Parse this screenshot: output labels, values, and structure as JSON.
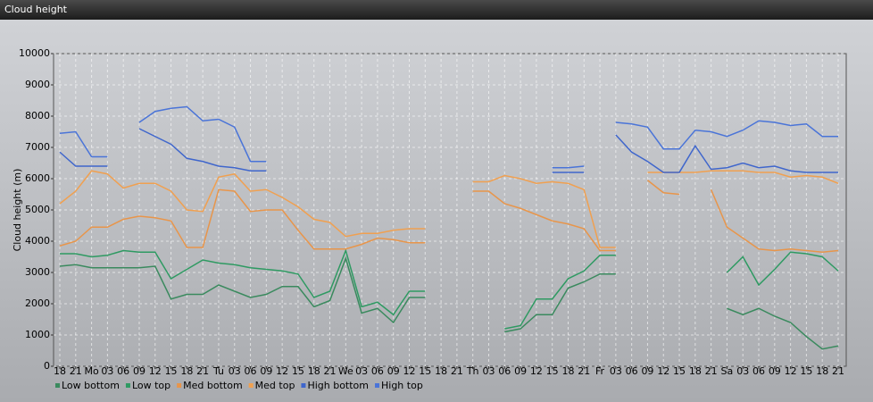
{
  "window_title": "Cloud height",
  "chart_data": {
    "type": "line",
    "y_label": "Cloud height (m)",
    "categories": [
      "18",
      "21",
      "Mo",
      "03",
      "06",
      "09",
      "12",
      "15",
      "18",
      "21",
      "Tu",
      "03",
      "06",
      "09",
      "12",
      "15",
      "18",
      "21",
      "We",
      "03",
      "06",
      "09",
      "12",
      "15",
      "18",
      "21",
      "Th",
      "03",
      "06",
      "09",
      "12",
      "15",
      "18",
      "21",
      "Fr",
      "03",
      "06",
      "09",
      "12",
      "15",
      "18",
      "21",
      "Sa",
      "03",
      "06",
      "09",
      "12",
      "15",
      "18",
      "21"
    ],
    "ylim": [
      0,
      10000
    ],
    "yticks": [
      0,
      1000,
      2000,
      3000,
      4000,
      5000,
      6000,
      7000,
      8000,
      9000,
      10000
    ],
    "grid": true,
    "series": [
      {
        "name": "Low bottom",
        "color": "#3a8a5e",
        "values": [
          3200,
          3250,
          3150,
          3150,
          3150,
          3150,
          3200,
          2150,
          2300,
          2300,
          2600,
          2400,
          2200,
          2300,
          2550,
          2550,
          1900,
          2100,
          3450,
          1700,
          1850,
          1400,
          2200,
          2200,
          null,
          null,
          null,
          null,
          1100,
          1200,
          1650,
          1650,
          2500,
          2700,
          2950,
          2950,
          null,
          null,
          null,
          null,
          null,
          null,
          1850,
          1650,
          1850,
          1600,
          1400,
          950,
          550,
          650
        ]
      },
      {
        "name": "Low top",
        "color": "#2e9a62",
        "values": [
          3600,
          3600,
          3500,
          3550,
          3700,
          3650,
          3650,
          2800,
          3100,
          3400,
          3300,
          3250,
          3150,
          3100,
          3050,
          2950,
          2200,
          2400,
          3700,
          1900,
          2050,
          1650,
          2400,
          2400,
          null,
          null,
          null,
          null,
          1200,
          1300,
          2150,
          2150,
          2800,
          3050,
          3550,
          3550,
          null,
          null,
          null,
          null,
          null,
          null,
          3000,
          3500,
          2600,
          3100,
          3650,
          3600,
          3500,
          3050
        ]
      },
      {
        "name": "Med bottom",
        "color": "#e8954a",
        "values": [
          3850,
          4000,
          4450,
          4450,
          4700,
          4800,
          4750,
          4650,
          3800,
          3800,
          5650,
          5600,
          4950,
          5000,
          5000,
          4350,
          3750,
          3750,
          3750,
          3900,
          4100,
          4050,
          3950,
          3950,
          null,
          null,
          5600,
          5600,
          5200,
          5050,
          4850,
          4650,
          4550,
          4400,
          3700,
          3700,
          null,
          5950,
          5550,
          5500,
          null,
          5650,
          4450,
          4100,
          3750,
          3700,
          3750,
          3700,
          3650,
          3700
        ]
      },
      {
        "name": "Med top",
        "color": "#f0a050",
        "values": [
          5200,
          5600,
          6250,
          6150,
          5700,
          5850,
          5850,
          5600,
          5000,
          4950,
          6050,
          6150,
          5600,
          5650,
          5400,
          5100,
          4700,
          4600,
          4150,
          4250,
          4250,
          4350,
          4400,
          4400,
          null,
          null,
          5900,
          5900,
          6100,
          6000,
          5850,
          5900,
          5850,
          5650,
          3800,
          3800,
          null,
          6200,
          6200,
          6200,
          6200,
          6250,
          6250,
          6250,
          6200,
          6200,
          6050,
          6100,
          6050,
          5850
        ]
      },
      {
        "name": "High bottom",
        "color": "#3f66cc",
        "values": [
          6850,
          6400,
          6400,
          6400,
          null,
          7600,
          7350,
          7100,
          6650,
          6550,
          6400,
          6350,
          6250,
          6250,
          null,
          null,
          null,
          null,
          null,
          null,
          null,
          null,
          null,
          null,
          null,
          null,
          null,
          null,
          null,
          null,
          null,
          6200,
          6200,
          6200,
          null,
          7400,
          6850,
          6550,
          6200,
          6200,
          7050,
          6300,
          6350,
          6500,
          6350,
          6400,
          6250,
          6200,
          6200,
          6200
        ]
      },
      {
        "name": "High top",
        "color": "#4a74d8",
        "values": [
          7450,
          7500,
          6700,
          6700,
          null,
          7800,
          8150,
          8250,
          8300,
          7850,
          7900,
          7650,
          6550,
          6550,
          null,
          null,
          null,
          null,
          null,
          null,
          null,
          null,
          null,
          null,
          null,
          null,
          null,
          null,
          null,
          null,
          null,
          6350,
          6350,
          6400,
          null,
          7800,
          7750,
          7650,
          6950,
          6950,
          7550,
          7500,
          7350,
          7550,
          7850,
          7800,
          7700,
          7750,
          7350,
          7350
        ]
      }
    ]
  }
}
